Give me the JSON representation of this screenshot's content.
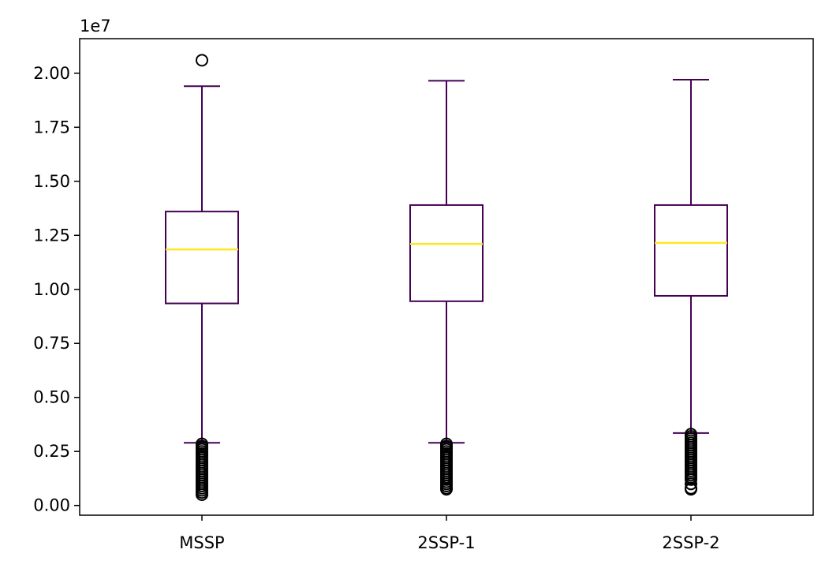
{
  "chart_data": {
    "type": "box",
    "title": "",
    "xlabel": "",
    "ylabel": "",
    "y_offset_label": "1e7",
    "ylim": [
      -0.045,
      2.16
    ],
    "y_ticks": [
      0.0,
      0.25,
      0.5,
      0.75,
      1.0,
      1.25,
      1.5,
      1.75,
      2.0
    ],
    "y_tick_labels": [
      "0.00",
      "0.25",
      "0.50",
      "0.75",
      "1.00",
      "1.25",
      "1.50",
      "1.75",
      "2.00"
    ],
    "categories": [
      "MSSP",
      "2SSP-1",
      "2SSP-2"
    ],
    "boxes": [
      {
        "whisker_low": 0.29,
        "q1": 0.935,
        "median": 1.185,
        "q3": 1.36,
        "whisker_high": 1.94,
        "outliers": [
          2.06,
          0.285,
          0.275,
          0.27,
          0.26,
          0.25,
          0.24,
          0.23,
          0.22,
          0.21,
          0.2,
          0.19,
          0.18,
          0.17,
          0.16,
          0.15,
          0.14,
          0.13,
          0.12,
          0.11,
          0.1,
          0.09,
          0.08,
          0.07,
          0.06,
          0.05
        ]
      },
      {
        "whisker_low": 0.29,
        "q1": 0.945,
        "median": 1.21,
        "q3": 1.39,
        "whisker_high": 1.965,
        "outliers": [
          0.285,
          0.275,
          0.27,
          0.26,
          0.25,
          0.24,
          0.23,
          0.22,
          0.21,
          0.2,
          0.19,
          0.18,
          0.17,
          0.16,
          0.15,
          0.14,
          0.13,
          0.12,
          0.11,
          0.1,
          0.09,
          0.08,
          0.075
        ]
      },
      {
        "whisker_low": 0.335,
        "q1": 0.97,
        "median": 1.215,
        "q3": 1.39,
        "whisker_high": 1.97,
        "outliers": [
          0.33,
          0.32,
          0.31,
          0.3,
          0.29,
          0.28,
          0.27,
          0.26,
          0.25,
          0.24,
          0.23,
          0.22,
          0.21,
          0.2,
          0.19,
          0.18,
          0.17,
          0.16,
          0.15,
          0.14,
          0.13,
          0.12,
          0.1,
          0.08,
          0.075
        ]
      }
    ],
    "colors": {
      "box": "#440154",
      "median": "#fde725",
      "flier": "#000000",
      "axes": "#000000"
    },
    "grid": false,
    "legend": "none"
  }
}
